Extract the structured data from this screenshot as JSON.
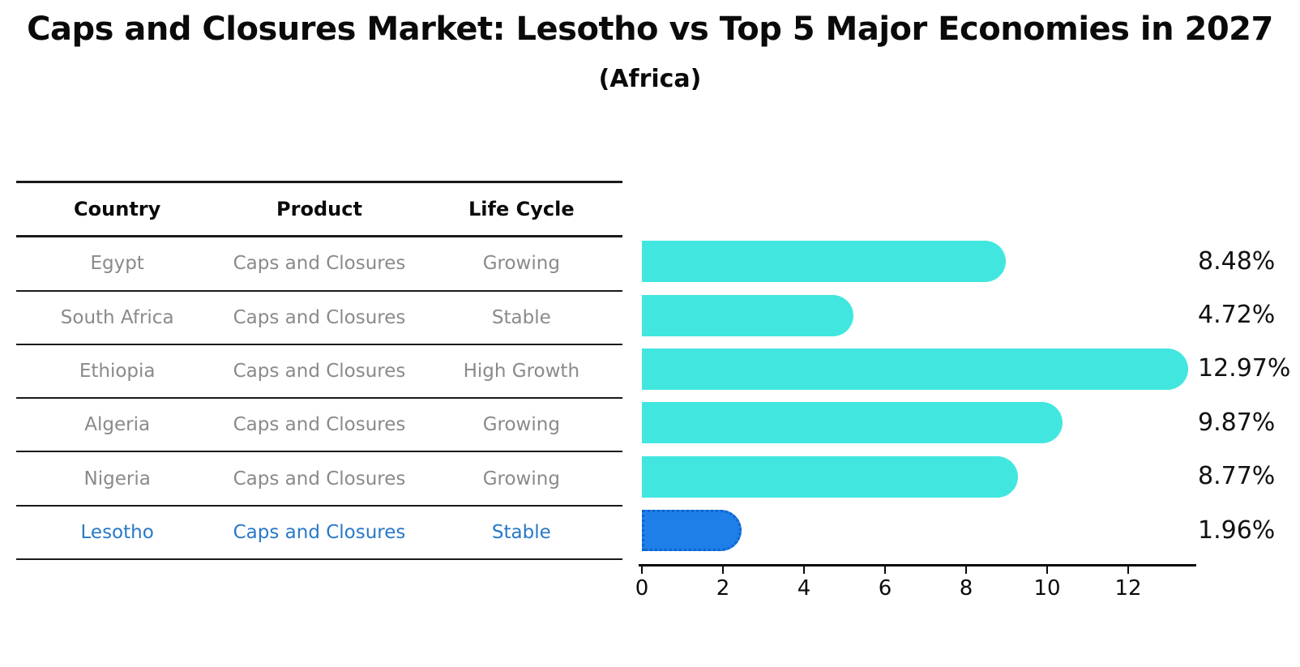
{
  "title": "Caps and Closures Market: Lesotho vs Top 5 Major Economies in 2027",
  "subtitle": "(Africa)",
  "table": {
    "headers": [
      "Country",
      "Product",
      "Life Cycle"
    ],
    "rows": [
      {
        "country": "Egypt",
        "product": "Caps and Closures",
        "life_cycle": "Growing",
        "highlight": false
      },
      {
        "country": "South Africa",
        "product": "Caps and Closures",
        "life_cycle": "Stable",
        "highlight": false
      },
      {
        "country": "Ethiopia",
        "product": "Caps and Closures",
        "life_cycle": "High Growth",
        "highlight": false
      },
      {
        "country": "Algeria",
        "product": "Caps and Closures",
        "life_cycle": "Growing",
        "highlight": false
      },
      {
        "country": "Nigeria",
        "product": "Caps and Closures",
        "life_cycle": "Growing",
        "highlight": true
      }
    ],
    "highlight_row": {
      "country": "Lesotho",
      "product": "Caps and Closures",
      "life_cycle": "Stable"
    }
  },
  "chart_data": {
    "type": "bar",
    "orientation": "horizontal",
    "categories": [
      "Egypt",
      "South Africa",
      "Ethiopia",
      "Algeria",
      "Nigeria",
      "Lesotho"
    ],
    "values": [
      8.48,
      4.72,
      12.97,
      9.87,
      8.77,
      1.96
    ],
    "value_labels": [
      "8.48%",
      "4.72%",
      "12.97%",
      "9.87%",
      "8.77%",
      "1.96%"
    ],
    "x_ticks": [
      "0",
      "2",
      "4",
      "6",
      "8",
      "10",
      "12"
    ],
    "x_tick_values": [
      0,
      2,
      4,
      6,
      8,
      10,
      12
    ],
    "xlim": [
      0,
      13.7
    ],
    "grid": false,
    "legend": false,
    "bar_color": "#41e7df",
    "highlight_color": "#1e7fe8",
    "highlight_border_color": "#0e62cf",
    "highlight_index": 5
  },
  "colors": {
    "text_primary": "#0a0a0a",
    "text_muted": "#8a8a8a",
    "text_highlight": "#2878c8",
    "table_line": "#1a1a1a"
  }
}
